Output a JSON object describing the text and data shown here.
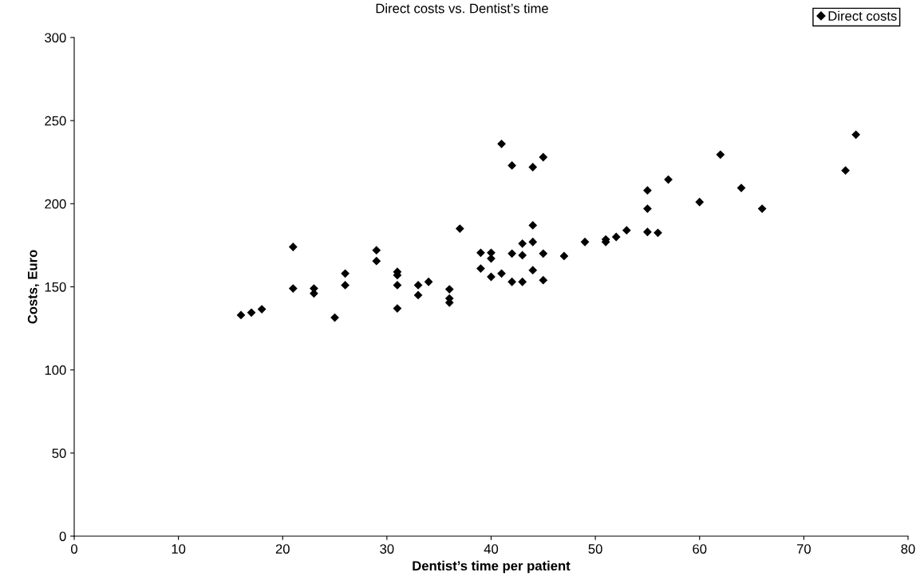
{
  "chart_data": {
    "type": "scatter",
    "title": "Direct costs vs. Dentist’s time",
    "xlabel": "Dentist’s time per patient",
    "ylabel": "Costs, Euro",
    "x": [
      16,
      17,
      18,
      21,
      21,
      23,
      23,
      25,
      26,
      26,
      29,
      29,
      31,
      31,
      31,
      31,
      33,
      33,
      34,
      36,
      36,
      36,
      37,
      39,
      39,
      40,
      40,
      40,
      41,
      41,
      42,
      42,
      42,
      43,
      43,
      43,
      44,
      44,
      44,
      44,
      45,
      45,
      45,
      47,
      49,
      51,
      51,
      52,
      53,
      55,
      55,
      55,
      56,
      57,
      60,
      62,
      64,
      66,
      74,
      75
    ],
    "series": [
      {
        "name": "Direct costs",
        "color": "#000000",
        "values": [
          133,
          134.5,
          136.5,
          174,
          149,
          149,
          146,
          131.5,
          158,
          151,
          172,
          165.5,
          159,
          157,
          151,
          137,
          151,
          145,
          153,
          148.5,
          143,
          140.5,
          185,
          170.5,
          161,
          170.5,
          167,
          156,
          236,
          158,
          223,
          170,
          153,
          176,
          169,
          153,
          222,
          187,
          177,
          160,
          228,
          170,
          154,
          168.5,
          177,
          178.5,
          177,
          180,
          184,
          208,
          197,
          183,
          182.5,
          214.5,
          201,
          229.5,
          209.5,
          197,
          220,
          241.5
        ]
      }
    ],
    "xlim": [
      0,
      80
    ],
    "xticks": [
      0,
      10,
      20,
      30,
      40,
      50,
      60,
      70,
      80
    ],
    "ylim": [
      0,
      300
    ],
    "yticks": [
      0,
      50,
      100,
      150,
      200,
      250,
      300
    ],
    "marker": "diamond",
    "grid": false,
    "legend": "top right"
  }
}
